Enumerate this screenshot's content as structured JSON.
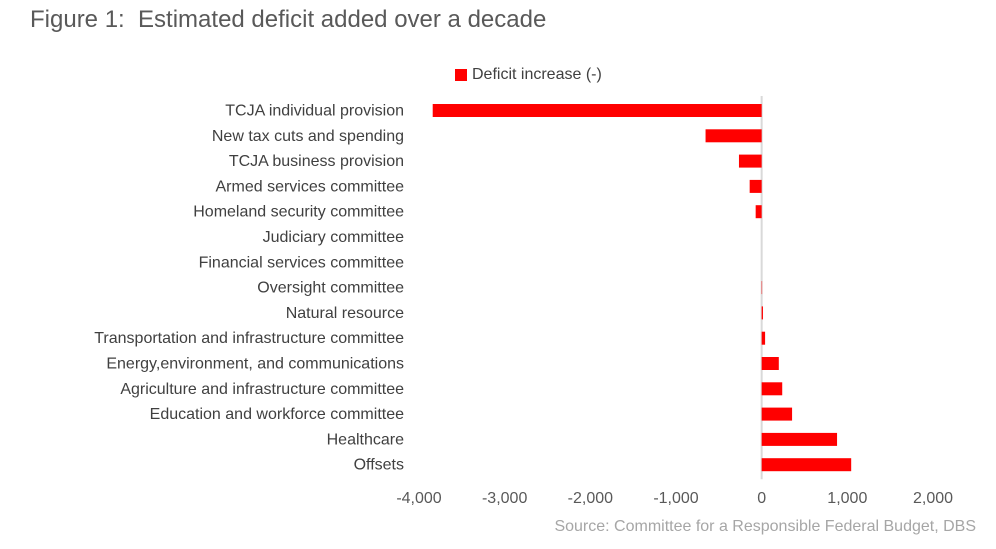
{
  "chart_data": {
    "type": "bar",
    "orientation": "horizontal",
    "title": "Figure 1:  Estimated deficit added over a decade",
    "source": "Source: Committee for a Responsible Federal Budget, DBS",
    "categories": [
      "TCJA individual provision",
      "New tax cuts and spending",
      "TCJA business provision",
      "Armed services committee",
      "Homeland security committee",
      "Judiciary committee",
      "Financial services committee",
      "Oversight committee",
      "Natural resource",
      "Transportation and infrastructure committee",
      "Energy,environment, and communications",
      "Agriculture and infrastructure committee",
      "Education and workforce committee",
      "Healthcare",
      "Offsets"
    ],
    "series": [
      {
        "name": "Deficit increase (-)",
        "color": "#ff0000",
        "values": [
          -3840,
          -655,
          -265,
          -140,
          -70,
          0,
          0,
          5,
          15,
          40,
          200,
          240,
          355,
          880,
          1045
        ]
      }
    ],
    "xlim": [
      -4000,
      2000
    ],
    "xticks": [
      -4000,
      -3000,
      -2000,
      -1000,
      0,
      1000,
      2000
    ],
    "xtick_labels": [
      "-4,000",
      "-3,000",
      "-2,000",
      "-1,000",
      "0",
      "1,000",
      "2,000"
    ],
    "legend": "top",
    "grid": false
  }
}
